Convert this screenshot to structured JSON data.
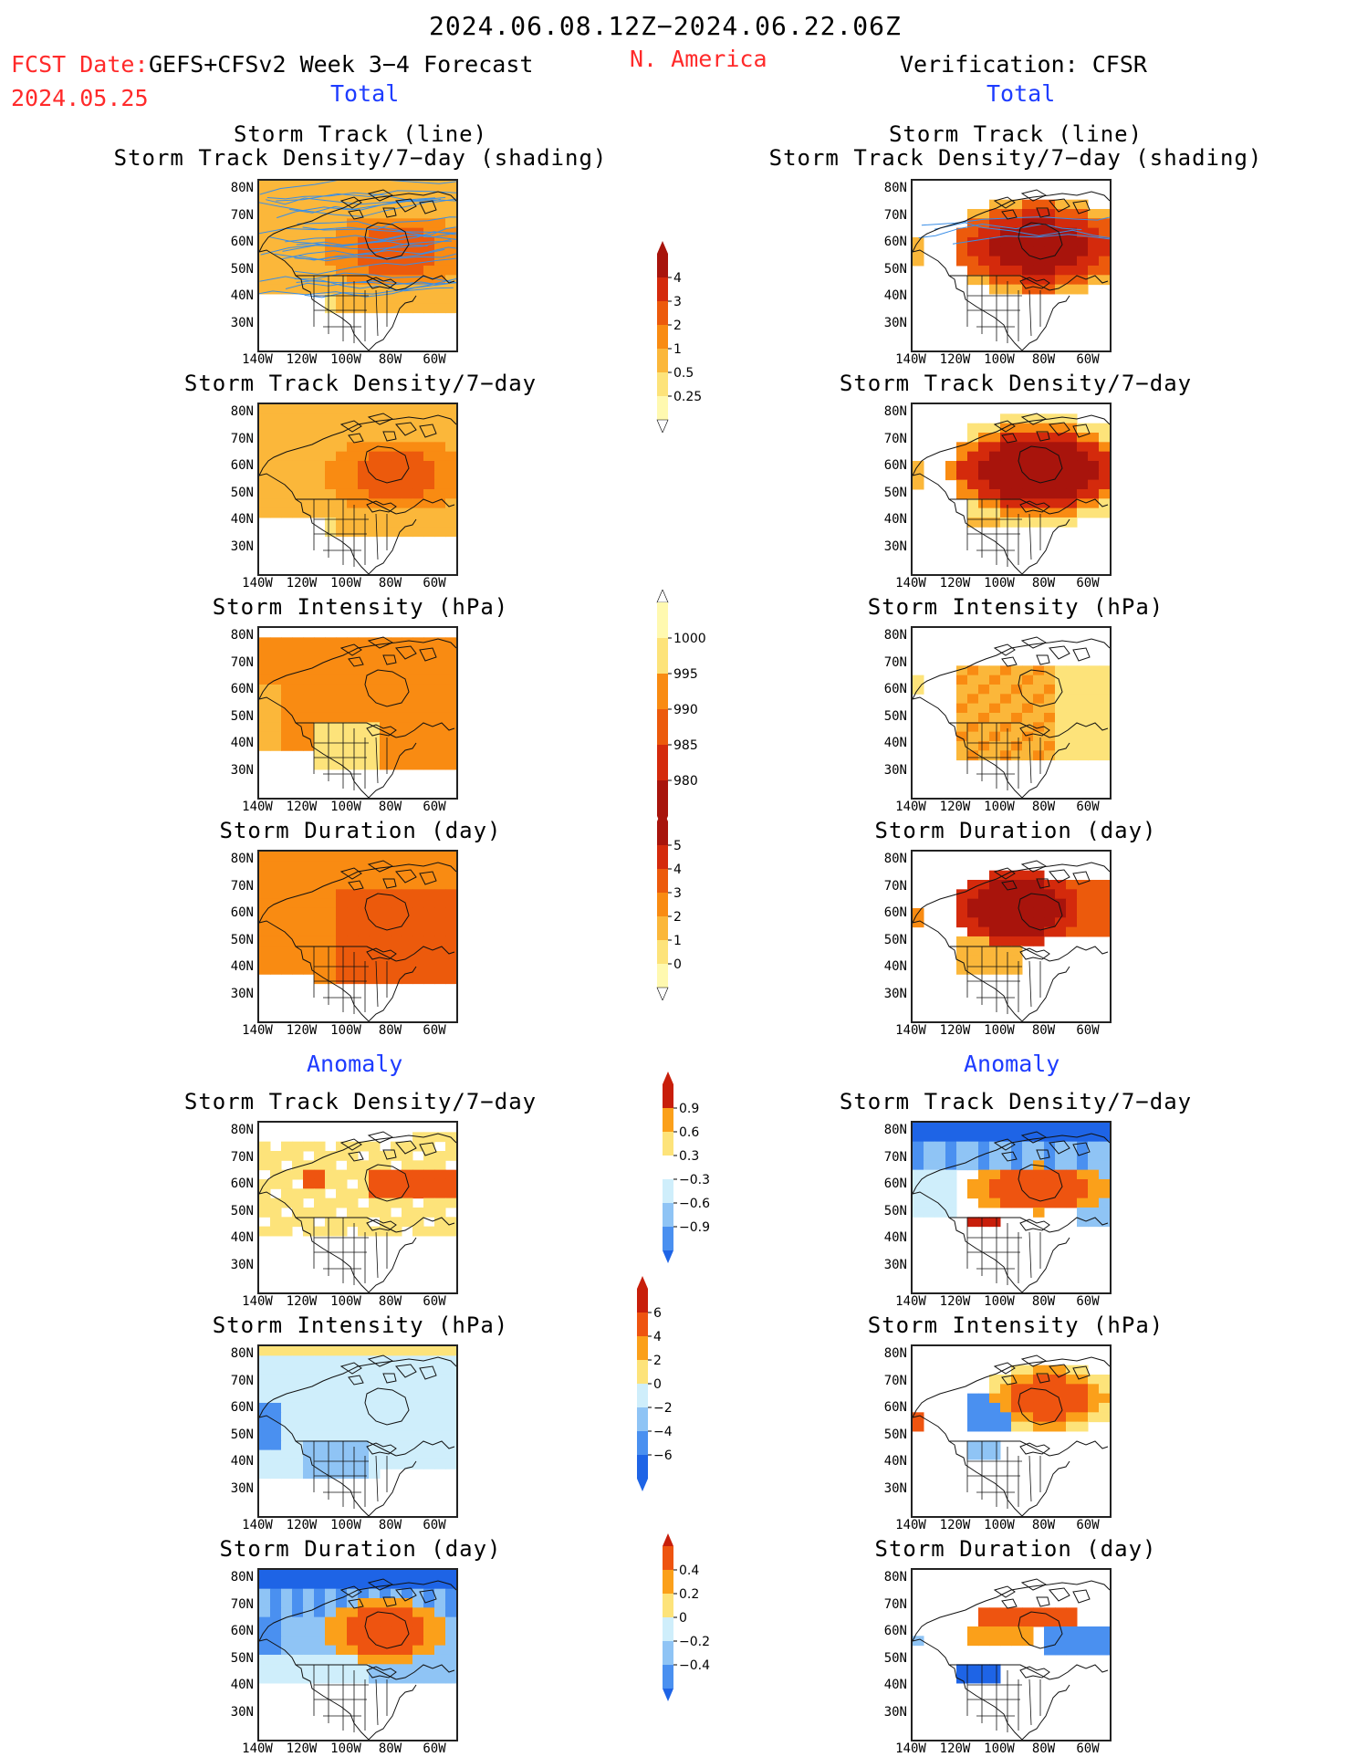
{
  "header": {
    "period": "2024.06.08.12Z−2024.06.22.06Z",
    "fcst_label": "FCST Date:",
    "model": "GEFS+CFSv2 Week 3−4 Forecast",
    "fcst_date": "2024.05.25",
    "region": "N. America",
    "verification": "Verification: CFSR",
    "left_total": "Total",
    "right_total": "Total",
    "left_anomaly": "Anomaly",
    "right_anomaly": "Anomaly"
  },
  "panels": {
    "track_line": "Storm Track (line)",
    "track_shading": "Storm Track Density/7−day (shading)",
    "density": "Storm Track Density/7−day",
    "intensity": "Storm Intensity (hPa)",
    "duration": "Storm Duration (day)"
  },
  "axes": {
    "lat": [
      "80N",
      "70N",
      "60N",
      "50N",
      "40N",
      "30N"
    ],
    "lon": [
      "140W",
      "120W",
      "100W",
      "80W",
      "60W"
    ]
  },
  "colorbars": {
    "density_total": [
      "4",
      "3",
      "2",
      "1",
      "0.5",
      "0.25"
    ],
    "intensity_total": [
      "1000",
      "995",
      "990",
      "985",
      "980"
    ],
    "duration_total": [
      "5",
      "4",
      "3",
      "2",
      "1",
      "0"
    ],
    "density_anom": [
      "0.9",
      "0.6",
      "0.3",
      "−0.3",
      "−0.6",
      "−0.9"
    ],
    "intensity_anom": [
      "6",
      "4",
      "2",
      "0",
      "−2",
      "−4",
      "−6"
    ],
    "duration_anom": [
      "0.4",
      "0.2",
      "0",
      "−0.2",
      "−0.4"
    ]
  },
  "colors": {
    "warm": [
      "#fff9b0",
      "#fde37a",
      "#fbb73a",
      "#f98b12",
      "#ec5a0c",
      "#d42a0c",
      "#a8140c"
    ],
    "anom": [
      "#1e64e6",
      "#4a90f0",
      "#8fc4f5",
      "#cfeefb",
      "#ffffff",
      "#fde37a",
      "#fba01a",
      "#ee5410",
      "#c81e0a"
    ],
    "title_red": "#ff2a2a",
    "title_blue": "#1e3cff",
    "track_line": "#3a8ee6"
  }
}
